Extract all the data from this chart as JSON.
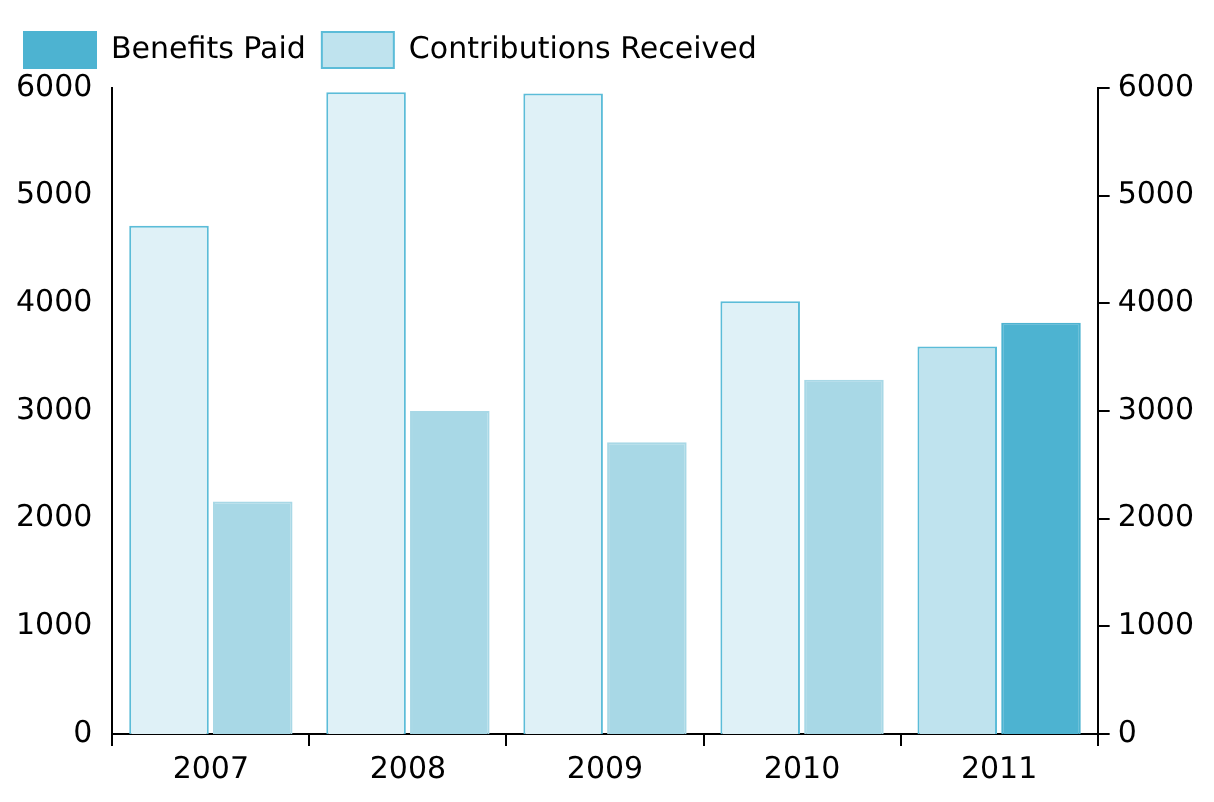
{
  "chart_data": {
    "type": "bar",
    "categories": [
      "2007",
      "2008",
      "2009",
      "2010",
      "2011"
    ],
    "series": [
      {
        "name": "Contributions Received",
        "colors": [
          "#dff1f7",
          "#dff1f7",
          "#dff1f7",
          "#dff1f7",
          "#bfe3ee"
        ],
        "values": [
          4720,
          5960,
          5950,
          4020,
          3600
        ]
      },
      {
        "name": "Benefits Paid",
        "colors": [
          "#a8d8e6",
          "#a8d8e6",
          "#a8d8e6",
          "#a8d8e6",
          "#4db3d1"
        ],
        "values": [
          2160,
          3000,
          2710,
          3290,
          3820
        ]
      }
    ],
    "ylim": [
      0,
      6000
    ],
    "yticks": [
      0,
      1000,
      2000,
      3000,
      4000,
      5000,
      6000
    ],
    "y2lim": [
      0,
      6000
    ],
    "y2ticks": [
      0,
      1000,
      2000,
      3000,
      4000,
      5000,
      6000
    ],
    "grid": false,
    "legend": "top left"
  }
}
